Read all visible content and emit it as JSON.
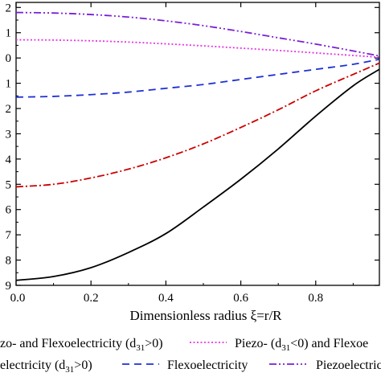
{
  "chart_data": {
    "type": "line",
    "xlabel": "Dimensionless radius ξ=r/R",
    "xlim": [
      0,
      0.97
    ],
    "ylim": [
      -9,
      2.2
    ],
    "xticks": [
      0.0,
      0.2,
      0.4,
      0.6,
      0.8
    ],
    "xtick_labels": [
      "0.0",
      "0.2",
      "0.4",
      "0.6",
      "0.8"
    ],
    "yticks": [
      2,
      1,
      0,
      -1,
      -2,
      -3,
      -4,
      -5,
      -6,
      -7,
      -8,
      -9
    ],
    "ytick_labels": [
      "2",
      "1",
      "0",
      "1",
      "2",
      "3",
      "4",
      "5",
      "6",
      "7",
      "8",
      "9"
    ],
    "legend_labels": [
      "zo- and Flexoelectricity (d",
      "31",
      ">0)",
      "Piezo- (d",
      "31",
      "<0) and Flexoe",
      "electricity (d",
      "31",
      ">0)",
      "Flexoelectricity",
      "Piezoelectrici"
    ],
    "series": [
      {
        "color": "#000000",
        "dash": "solid",
        "x": [
          0,
          0.1,
          0.2,
          0.3,
          0.4,
          0.5,
          0.6,
          0.7,
          0.8,
          0.9,
          0.97
        ],
        "y": [
          -8.8,
          -8.65,
          -8.3,
          -7.7,
          -6.95,
          -5.9,
          -4.8,
          -3.6,
          -2.3,
          -1.1,
          -0.45
        ]
      },
      {
        "color": "#cc0000",
        "dash": "dashdot",
        "x": [
          0,
          0.1,
          0.2,
          0.3,
          0.4,
          0.5,
          0.6,
          0.7,
          0.8,
          0.9,
          0.97
        ],
        "y": [
          -5.1,
          -5.0,
          -4.75,
          -4.4,
          -3.95,
          -3.4,
          -2.75,
          -2.05,
          -1.3,
          -0.65,
          -0.2
        ]
      },
      {
        "color": "#1f2fd6",
        "dash": "dash",
        "x": [
          0,
          0.1,
          0.2,
          0.3,
          0.4,
          0.5,
          0.6,
          0.7,
          0.8,
          0.9,
          0.97
        ],
        "y": [
          -1.55,
          -1.52,
          -1.45,
          -1.35,
          -1.2,
          -1.05,
          -0.85,
          -0.65,
          -0.45,
          -0.25,
          -0.05
        ]
      },
      {
        "color": "#e633e6",
        "dash": "dotted",
        "x": [
          0,
          0.1,
          0.2,
          0.3,
          0.4,
          0.5,
          0.6,
          0.7,
          0.8,
          0.9,
          0.97
        ],
        "y": [
          0.72,
          0.71,
          0.68,
          0.63,
          0.56,
          0.48,
          0.39,
          0.3,
          0.2,
          0.1,
          0.03
        ]
      },
      {
        "color": "#7a1fd6",
        "dash": "dashdotdot",
        "x": [
          0,
          0.1,
          0.2,
          0.3,
          0.4,
          0.5,
          0.6,
          0.7,
          0.8,
          0.9,
          0.97
        ],
        "y": [
          1.8,
          1.78,
          1.72,
          1.62,
          1.47,
          1.28,
          1.05,
          0.8,
          0.55,
          0.28,
          0.08
        ]
      }
    ]
  }
}
